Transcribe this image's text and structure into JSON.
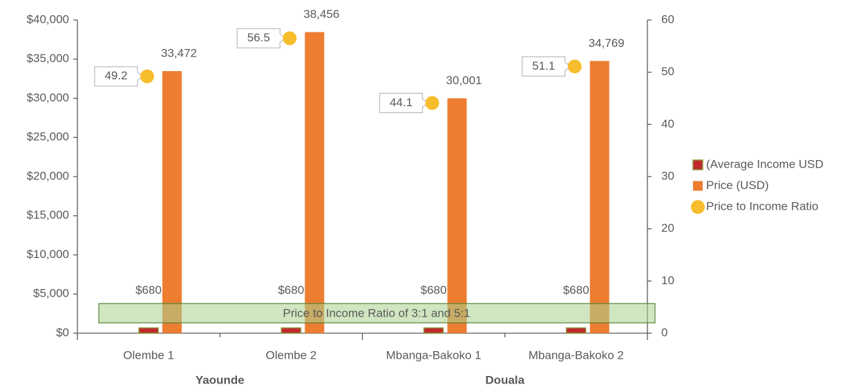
{
  "chart_data": {
    "type": "bar",
    "categories": [
      "Olembe 1",
      "Olembe 2",
      "Mbanga-Bakoko 1",
      "Mbanga-Bakoko 2"
    ],
    "group_labels": [
      "Yaounde",
      "Douala"
    ],
    "annotation": "Price to Income Ratio of 3:1 and 5:1",
    "series": [
      {
        "name": "(Average Income USD",
        "type": "bar",
        "color": "#c0282d",
        "values": [
          680,
          680,
          680,
          680
        ],
        "value_labels": [
          "$680",
          "$680",
          "$680",
          "$680"
        ]
      },
      {
        "name": "Price (USD)",
        "type": "bar",
        "color": "#ed7d31",
        "values": [
          33472,
          38456,
          30001,
          34769
        ],
        "value_labels": [
          "33,472",
          "38,456",
          "30,001",
          "34,769"
        ]
      },
      {
        "name": "Price to Income Ratio",
        "type": "scatter",
        "axis": "y2",
        "color": "#f6bd2c",
        "values": [
          49.2,
          56.5,
          44.1,
          51.1
        ]
      }
    ],
    "ylim": [
      0,
      40000
    ],
    "yticks": [
      {
        "value": 0,
        "label": "$0"
      },
      {
        "value": 5000,
        "label": "$5,000"
      },
      {
        "value": 10000,
        "label": "$10,000"
      },
      {
        "value": 15000,
        "label": "$15,000"
      },
      {
        "value": 20000,
        "label": "$20,000"
      },
      {
        "value": 25000,
        "label": "$25,000"
      },
      {
        "value": 30000,
        "label": "$30,000"
      },
      {
        "value": 35000,
        "label": "$35,000"
      },
      {
        "value": 40000,
        "label": "$40,000"
      }
    ],
    "y2lim": [
      0,
      60
    ],
    "y2ticks": [
      0,
      10,
      20,
      30,
      40,
      50,
      60
    ],
    "legend": "right",
    "grid": false
  }
}
